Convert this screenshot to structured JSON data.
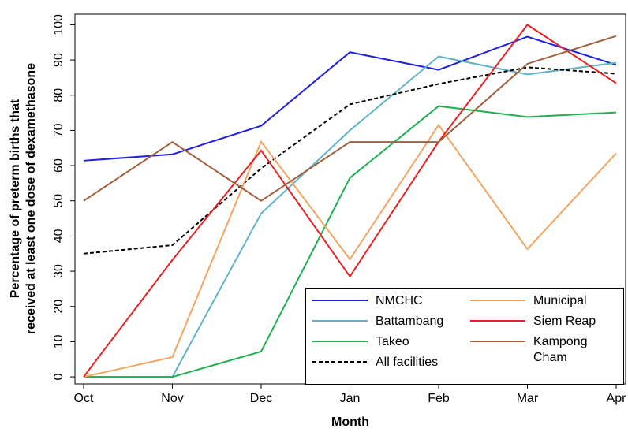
{
  "chart_data": {
    "type": "line",
    "xlabel": "Month",
    "ylabel": [
      "Percentage of preterm births that",
      "received at least one dose of dexamethasone"
    ],
    "categories": [
      "Oct",
      "Nov",
      "Dec",
      "Jan",
      "Feb",
      "Mar",
      "Apr"
    ],
    "ylim": [
      -2,
      103
    ],
    "yticks": [
      0,
      10,
      20,
      30,
      40,
      50,
      60,
      70,
      80,
      90,
      100
    ],
    "series": [
      {
        "name": "NMCHC",
        "color": "#1f1fe0",
        "values": [
          61.4,
          63.2,
          71.3,
          92.2,
          87.2,
          96.6,
          88.6
        ]
      },
      {
        "name": "Battambang",
        "color": "#5fb3c8",
        "values": [
          0,
          0,
          46.4,
          70,
          91,
          85.9,
          89.2
        ]
      },
      {
        "name": "Takeo",
        "color": "#1fb050",
        "values": [
          0,
          0,
          7.2,
          56.5,
          76.9,
          73.8,
          75.1
        ]
      },
      {
        "name": "All facilities",
        "color": "#000000",
        "dashed": true,
        "values": [
          35,
          37.4,
          59.2,
          77.4,
          83.2,
          87.9,
          86.1
        ]
      },
      {
        "name": "Municipal",
        "color": "#f4a460",
        "values": [
          0,
          5.6,
          66.8,
          33.4,
          71.5,
          36.3,
          63.5
        ]
      },
      {
        "name": "Siem Reap",
        "color": "#e82020",
        "values": [
          0,
          33.2,
          64.3,
          28.5,
          66.8,
          100,
          83.4
        ]
      },
      {
        "name": "Kampong Cham",
        "color": "#a0603c",
        "values": [
          50,
          66.7,
          50,
          66.7,
          66.7,
          88.9,
          96.8
        ]
      }
    ]
  }
}
